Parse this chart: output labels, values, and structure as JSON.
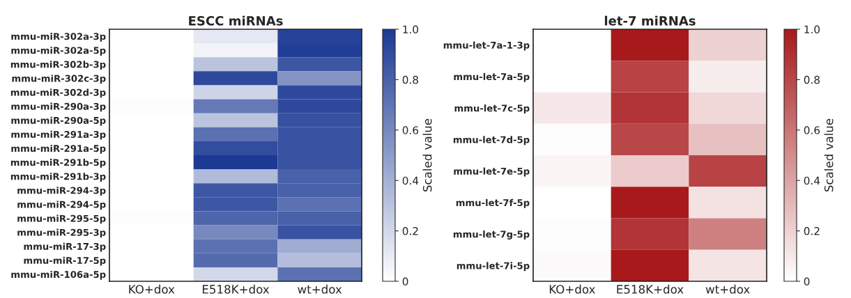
{
  "chart_data": [
    {
      "type": "heatmap",
      "title": "ESCC miRNAs",
      "clabel": "Scaled value",
      "categories": [
        "KO+dox",
        "E518K+dox",
        "wt+dox"
      ],
      "y_categories": [
        "mmu-miR-302a-3p",
        "mmu-miR-302a-5p",
        "mmu-miR-302b-3p",
        "mmu-miR-302c-3p",
        "mmu-miR-302d-3p",
        "mmu-miR-290a-3p",
        "mmu-miR-290a-5p",
        "mmu-miR-291a-3p",
        "mmu-miR-291a-5p",
        "mmu-miR-291b-5p",
        "mmu-miR-291b-3p",
        "mmu-miR-294-3p",
        "mmu-miR-294-5p",
        "mmu-miR-295-5p",
        "mmu-miR-295-3p",
        "mmu-miR-17-3p",
        "mmu-miR-17-5p",
        "mmu-miR-106a-5p"
      ],
      "cells": [
        [
          0,
          0.12,
          0.95
        ],
        [
          0,
          0.06,
          0.97
        ],
        [
          0,
          0.3,
          0.85
        ],
        [
          0,
          0.92,
          0.55
        ],
        [
          0,
          0.22,
          0.92
        ],
        [
          0.01,
          0.68,
          0.92
        ],
        [
          0,
          0.3,
          0.88
        ],
        [
          0,
          0.72,
          0.87
        ],
        [
          0,
          0.9,
          0.87
        ],
        [
          0,
          1.0,
          0.87
        ],
        [
          0,
          0.35,
          0.8
        ],
        [
          0,
          0.85,
          0.8
        ],
        [
          0,
          0.85,
          0.72
        ],
        [
          0.01,
          0.78,
          0.8
        ],
        [
          0,
          0.6,
          0.87
        ],
        [
          0,
          0.72,
          0.42
        ],
        [
          0,
          0.75,
          0.33
        ],
        [
          0,
          0.2,
          0.72
        ]
      ],
      "colors": [
        "#ffffff",
        "#1c3a94"
      ],
      "clim": [
        0,
        1
      ],
      "cticks": [
        0,
        0.2,
        0.4,
        0.6,
        0.8,
        {
          "value": 1,
          "label": "1.0"
        }
      ]
    },
    {
      "type": "heatmap",
      "title": "let-7 miRNAs",
      "clabel": "Scaled value",
      "categories": [
        "KO+dox",
        "E518K+dox",
        "wt+dox"
      ],
      "y_categories": [
        "mmu-let-7a-1-3p",
        "mmu-let-7a-5p",
        "mmu-let-7c-5p",
        "mmu-let-7d-5p",
        "mmu-let-7e-5p",
        "mmu-let-7f-5p",
        "mmu-let-7g-5p",
        "mmu-let-7i-5p"
      ],
      "cells": [
        [
          0,
          1.0,
          0.2
        ],
        [
          0,
          0.82,
          0.08
        ],
        [
          0.1,
          0.88,
          0.17
        ],
        [
          0.01,
          0.8,
          0.27
        ],
        [
          0.05,
          0.23,
          0.82
        ],
        [
          0,
          1.0,
          0.13
        ],
        [
          0.01,
          0.88,
          0.55
        ],
        [
          0.02,
          1.0,
          0.12
        ]
      ],
      "colors": [
        "#ffffff",
        "#a8191b"
      ],
      "clim": [
        0,
        1
      ],
      "cticks": [
        0,
        0.2,
        0.4,
        0.6,
        0.8,
        {
          "value": 1,
          "label": "1.0"
        }
      ]
    }
  ]
}
